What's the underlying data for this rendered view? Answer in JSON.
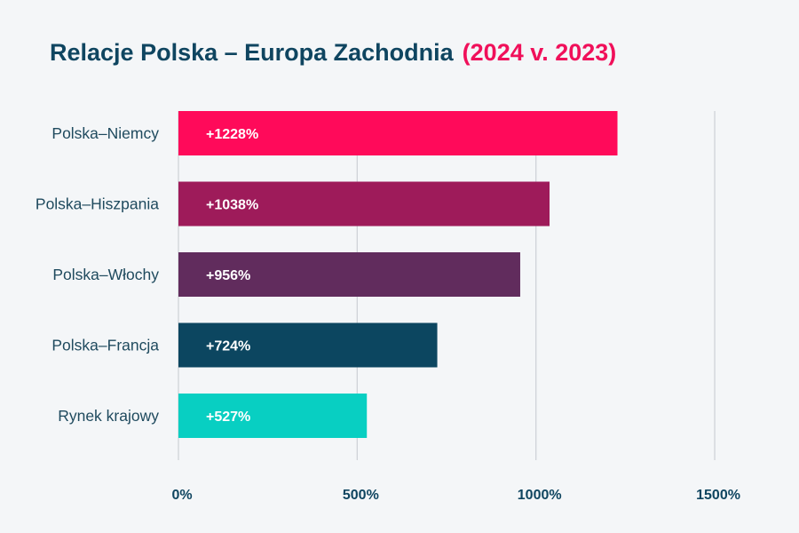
{
  "chart_data": {
    "type": "bar",
    "orientation": "horizontal",
    "title": "Relacje Polska – Europa Zachodnia",
    "title_highlight": "(2024 v. 2023)",
    "categories": [
      "Polska–Niemcy",
      "Polska–Hiszpania",
      "Polska–Włochy",
      "Polska–Francja",
      "Rynek krajowy"
    ],
    "values": [
      1228,
      1038,
      956,
      724,
      527
    ],
    "value_labels": [
      "+1228%",
      "+1038%",
      "+956%",
      "+724%",
      "+527%"
    ],
    "colors": [
      "#ff0a5a",
      "#9e1b5a",
      "#612c5d",
      "#0c4660",
      "#08cfc2"
    ],
    "xlim": [
      0,
      1500
    ],
    "ticks": [
      0,
      500,
      1000,
      1500
    ],
    "tick_labels": [
      "0%",
      "500%",
      "1000%",
      "1500%"
    ],
    "grid": true,
    "legend": "none"
  }
}
